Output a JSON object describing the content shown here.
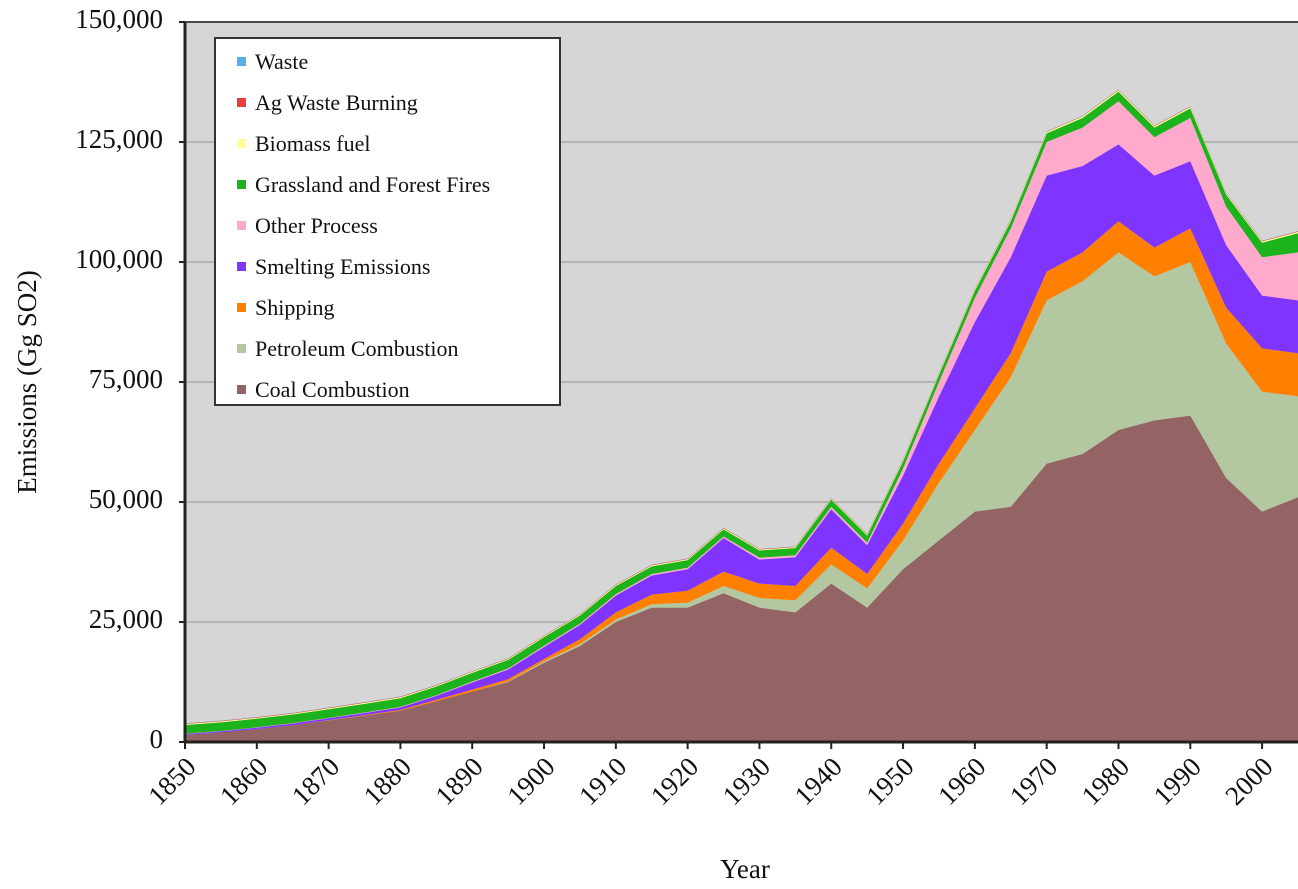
{
  "chart_data": {
    "type": "stacked-area",
    "x_label": "Year",
    "y_label": "Emissions (Gg SO2)",
    "x": [
      1850,
      1855,
      1860,
      1865,
      1870,
      1875,
      1880,
      1885,
      1890,
      1895,
      1900,
      1905,
      1910,
      1915,
      1920,
      1925,
      1930,
      1935,
      1940,
      1945,
      1950,
      1955,
      1960,
      1965,
      1970,
      1975,
      1980,
      1985,
      1990,
      1995,
      2000,
      2005
    ],
    "series": [
      {
        "name": "Coal Combustion",
        "color": "#946465",
        "values": [
          1500,
          2000,
          2700,
          3500,
          4500,
          5500,
          6500,
          8500,
          10500,
          12500,
          16500,
          20000,
          25000,
          28000,
          28000,
          31000,
          28000,
          27000,
          33000,
          28000,
          36000,
          42000,
          48000,
          49000,
          58000,
          60000,
          65000,
          67000,
          68000,
          55000,
          48000,
          51000
        ]
      },
      {
        "name": "Petroleum Combustion",
        "color": "#b3c7a0",
        "values": [
          0,
          0,
          0,
          0,
          0,
          0,
          0,
          0,
          0,
          100,
          300,
          400,
          500,
          700,
          1000,
          1500,
          2000,
          2500,
          4000,
          4000,
          6000,
          12000,
          17000,
          27000,
          34000,
          36000,
          37000,
          30000,
          32000,
          28000,
          25000,
          21000
        ]
      },
      {
        "name": "Shipping",
        "color": "#ff7f00",
        "values": [
          0,
          0,
          0,
          0,
          50,
          100,
          200,
          300,
          400,
          500,
          500,
          1000,
          1500,
          2000,
          2500,
          3000,
          3000,
          3000,
          3500,
          3000,
          3500,
          4000,
          4500,
          5000,
          6000,
          6000,
          6500,
          6000,
          7000,
          7500,
          9000,
          9000
        ]
      },
      {
        "name": "Smelting Emissions",
        "color": "#7f35ff",
        "values": [
          200,
          250,
          300,
          350,
          400,
          450,
          500,
          800,
          1500,
          2000,
          2500,
          3000,
          3500,
          4000,
          4500,
          7000,
          5000,
          6000,
          8000,
          6000,
          10000,
          14000,
          18000,
          20000,
          20000,
          18000,
          16000,
          15000,
          14000,
          13000,
          11000,
          11000
        ]
      },
      {
        "name": "Other Process",
        "color": "#ffaacc",
        "values": [
          50,
          50,
          60,
          70,
          80,
          100,
          120,
          150,
          200,
          200,
          250,
          250,
          300,
          300,
          300,
          300,
          400,
          400,
          500,
          500,
          1500,
          3000,
          5000,
          6000,
          7000,
          8000,
          9000,
          8000,
          9000,
          8000,
          8000,
          10000
        ]
      },
      {
        "name": "Grassland and Forest Fires",
        "color": "#1db31d",
        "values": [
          1800,
          1800,
          1800,
          1800,
          1800,
          1800,
          1800,
          1800,
          1800,
          1800,
          1800,
          1700,
          1700,
          1600,
          1600,
          1500,
          1500,
          1500,
          1500,
          1500,
          1500,
          1500,
          1500,
          1500,
          1800,
          2000,
          2000,
          2000,
          2000,
          2500,
          3000,
          4000
        ]
      },
      {
        "name": "Biomass fuel",
        "color": "#ffff99",
        "values": [
          200,
          200,
          200,
          200,
          200,
          200,
          200,
          200,
          200,
          200,
          200,
          200,
          200,
          200,
          200,
          200,
          200,
          200,
          200,
          200,
          300,
          300,
          300,
          300,
          300,
          300,
          300,
          300,
          300,
          300,
          300,
          300
        ]
      },
      {
        "name": "Ag Waste Burning",
        "color": "#e83e3e",
        "values": [
          100,
          100,
          100,
          100,
          100,
          100,
          100,
          100,
          100,
          100,
          100,
          100,
          100,
          100,
          100,
          100,
          100,
          100,
          100,
          100,
          100,
          100,
          100,
          100,
          100,
          100,
          100,
          100,
          100,
          100,
          100,
          100
        ]
      },
      {
        "name": "Waste",
        "color": "#5aaee8",
        "values": [
          50,
          50,
          50,
          50,
          50,
          50,
          50,
          50,
          50,
          50,
          50,
          50,
          50,
          50,
          50,
          50,
          50,
          50,
          50,
          50,
          50,
          50,
          50,
          50,
          50,
          50,
          50,
          50,
          50,
          50,
          50,
          50
        ]
      }
    ],
    "xlim": [
      1850,
      2005
    ],
    "xticks": [
      1850,
      1860,
      1870,
      1880,
      1890,
      1900,
      1910,
      1920,
      1930,
      1940,
      1950,
      1960,
      1970,
      1980,
      1990,
      2000
    ],
    "ylim": [
      0,
      150000
    ],
    "yticks": [
      0,
      {
        "value": 25000,
        "label": "25,000"
      },
      {
        "value": 50000,
        "label": "50,000"
      },
      {
        "value": 75000,
        "label": "75,000"
      },
      {
        "value": 100000,
        "label": "100,000"
      },
      {
        "value": 125000,
        "label": "125,000"
      },
      {
        "value": 150000,
        "label": "150,000"
      }
    ],
    "grid": true,
    "legend": "top-left"
  }
}
